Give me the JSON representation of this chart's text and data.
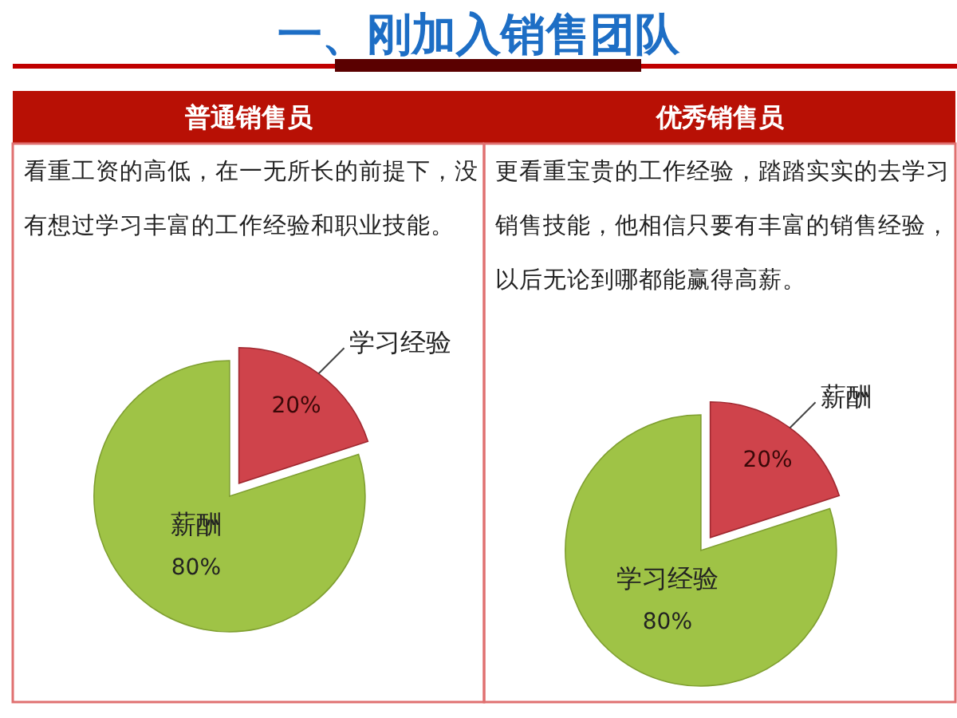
{
  "chart_data": [
    {
      "type": "other",
      "title": "一、刚加入销售团队"
    },
    {
      "type": "pie",
      "title": "普通销售员",
      "subtitle": "看重工资的高低，在一无所长的前提下，没有想过学习丰富的工作经验和职业技能。",
      "categories": [
        "学习经验",
        "薪酬"
      ],
      "values": [
        20,
        80
      ],
      "colors": [
        "#cf434b",
        "#9fc346"
      ],
      "value_labels": [
        "20%",
        "80%"
      ]
    },
    {
      "type": "pie",
      "title": "优秀销售员",
      "subtitle": "更看重宝贵的工作经验，踏踏实实的去学习销售技能，他相信只要有丰富的销售经验，以后无论到哪都能赢得高薪。",
      "categories": [
        "薪酬",
        "学习经验"
      ],
      "values": [
        20,
        80
      ],
      "colors": [
        "#cf434b",
        "#9fc346"
      ],
      "value_labels": [
        "20%",
        "80%"
      ]
    }
  ]
}
